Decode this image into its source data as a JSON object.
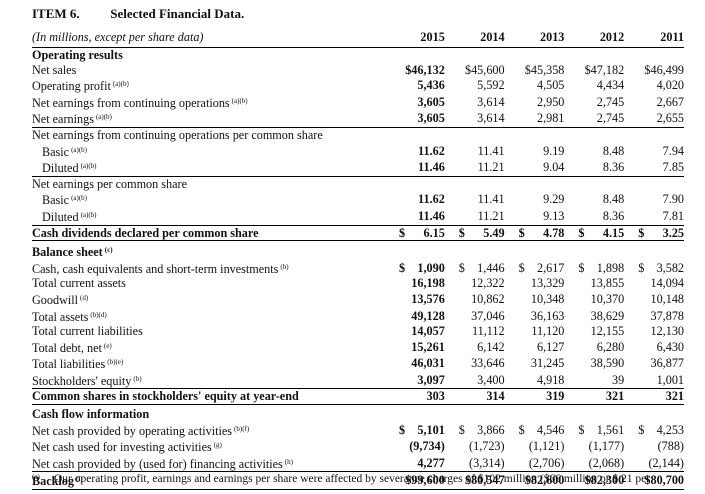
{
  "heading": {
    "item": "ITEM 6.",
    "title": "Selected Financial Data."
  },
  "units": "(In millions, except per share data)",
  "years": [
    "2015",
    "2014",
    "2013",
    "2012",
    "2011"
  ],
  "rows": [
    {
      "type": "section",
      "label": "Operating results",
      "values": [
        "",
        "",
        "",
        "",
        ""
      ]
    },
    {
      "type": "data",
      "label": "Net sales",
      "note": "",
      "values": [
        "$46,132",
        "$45,600",
        "$45,358",
        "$47,182",
        "$46,499"
      ]
    },
    {
      "type": "data",
      "label": "Operating profit",
      "note": "(a)(b)",
      "values": [
        "5,436",
        "5,592",
        "4,505",
        "4,434",
        "4,020"
      ]
    },
    {
      "type": "data",
      "label": "Net earnings from continuing operations",
      "note": "(a)(b)",
      "values": [
        "3,605",
        "3,614",
        "2,950",
        "2,745",
        "2,667"
      ]
    },
    {
      "type": "data",
      "label": "Net earnings",
      "note": "(a)(b)",
      "values": [
        "3,605",
        "3,614",
        "2,981",
        "2,745",
        "2,655"
      ],
      "rule": true
    },
    {
      "type": "label",
      "label": "Net earnings from continuing operations per common share",
      "values": [
        "",
        "",
        "",
        "",
        ""
      ]
    },
    {
      "type": "data",
      "label": "Basic",
      "note": "(a)(b)",
      "indent": true,
      "values": [
        "11.62",
        "11.41",
        "9.19",
        "8.48",
        "7.94"
      ]
    },
    {
      "type": "data",
      "label": "Diluted",
      "note": "(a)(b)",
      "indent": true,
      "values": [
        "11.46",
        "11.21",
        "9.04",
        "8.36",
        "7.85"
      ],
      "rule": true
    },
    {
      "type": "label",
      "label": "Net earnings per common share",
      "values": [
        "",
        "",
        "",
        "",
        ""
      ]
    },
    {
      "type": "data",
      "label": "Basic",
      "note": "(a)(b)",
      "indent": true,
      "values": [
        "11.62",
        "11.41",
        "9.29",
        "8.48",
        "7.90"
      ]
    },
    {
      "type": "data",
      "label": "Diluted",
      "note": "(a)(b)",
      "indent": true,
      "values": [
        "11.46",
        "11.21",
        "9.13",
        "8.36",
        "7.81"
      ],
      "rule": true
    },
    {
      "type": "bold",
      "label": "Cash dividends declared per common share",
      "note": "",
      "dollar": true,
      "values": [
        "6.15",
        "5.49",
        "4.78",
        "4.15",
        "3.25"
      ],
      "rule": true
    },
    {
      "type": "section",
      "label": "Balance sheet",
      "note": "(c)",
      "values": [
        "",
        "",
        "",
        "",
        ""
      ]
    },
    {
      "type": "data",
      "label": "Cash, cash equivalents and short-term investments",
      "note": "(b)",
      "dollar": true,
      "values": [
        "1,090",
        "1,446",
        "2,617",
        "1,898",
        "3,582"
      ]
    },
    {
      "type": "data",
      "label": "Total current assets",
      "note": "",
      "values": [
        "16,198",
        "12,322",
        "13,329",
        "13,855",
        "14,094"
      ]
    },
    {
      "type": "data",
      "label": "Goodwill",
      "note": "(d)",
      "values": [
        "13,576",
        "10,862",
        "10,348",
        "10,370",
        "10,148"
      ]
    },
    {
      "type": "data",
      "label": "Total assets",
      "note": "(b)(d)",
      "values": [
        "49,128",
        "37,046",
        "36,163",
        "38,629",
        "37,878"
      ]
    },
    {
      "type": "data",
      "label": "Total current liabilities",
      "note": "",
      "values": [
        "14,057",
        "11,112",
        "11,120",
        "12,155",
        "12,130"
      ]
    },
    {
      "type": "data",
      "label": "Total debt, net",
      "note": "(e)",
      "values": [
        "15,261",
        "6,142",
        "6,127",
        "6,280",
        "6,430"
      ]
    },
    {
      "type": "data",
      "label": "Total liabilities",
      "note": "(b)(e)",
      "values": [
        "46,031",
        "33,646",
        "31,245",
        "38,590",
        "36,877"
      ]
    },
    {
      "type": "data",
      "label": "Stockholders' equity",
      "note": "(b)",
      "values": [
        "3,097",
        "3,400",
        "4,918",
        "39",
        "1,001"
      ],
      "rule": true
    },
    {
      "type": "bold",
      "label": "Common shares in stockholders' equity at year-end",
      "note": "",
      "values": [
        "303",
        "314",
        "319",
        "321",
        "321"
      ],
      "rule": true
    },
    {
      "type": "section",
      "label": "Cash flow information",
      "values": [
        "",
        "",
        "",
        "",
        ""
      ]
    },
    {
      "type": "data",
      "label": "Net cash provided by operating activities",
      "note": "(b)(f)",
      "dollar": true,
      "values": [
        "5,101",
        "3,866",
        "4,546",
        "1,561",
        "4,253"
      ]
    },
    {
      "type": "data",
      "label": "Net cash used for investing activities",
      "note": "(g)",
      "values": [
        "(9,734)",
        "(1,723)",
        "(1,121)",
        "(1,177)",
        "(788)"
      ]
    },
    {
      "type": "data",
      "label": "Net cash provided by (used for) financing activities",
      "note": "(h)",
      "values": [
        "4,277",
        "(3,314)",
        "(2,706)",
        "(2,068)",
        "(2,144)"
      ],
      "rule": true
    },
    {
      "type": "bold",
      "label": "Backlog",
      "note": "(i)",
      "values": [
        "$99,600",
        "$80,547",
        "$82,600",
        "$82,300",
        "$80,700"
      ],
      "rule": true
    }
  ],
  "footnote": {
    "mark": "(a)",
    "text": "Our operating profit, earnings and earnings per share were affected by severance charges of $102 million ($66 million or $.21 per"
  }
}
